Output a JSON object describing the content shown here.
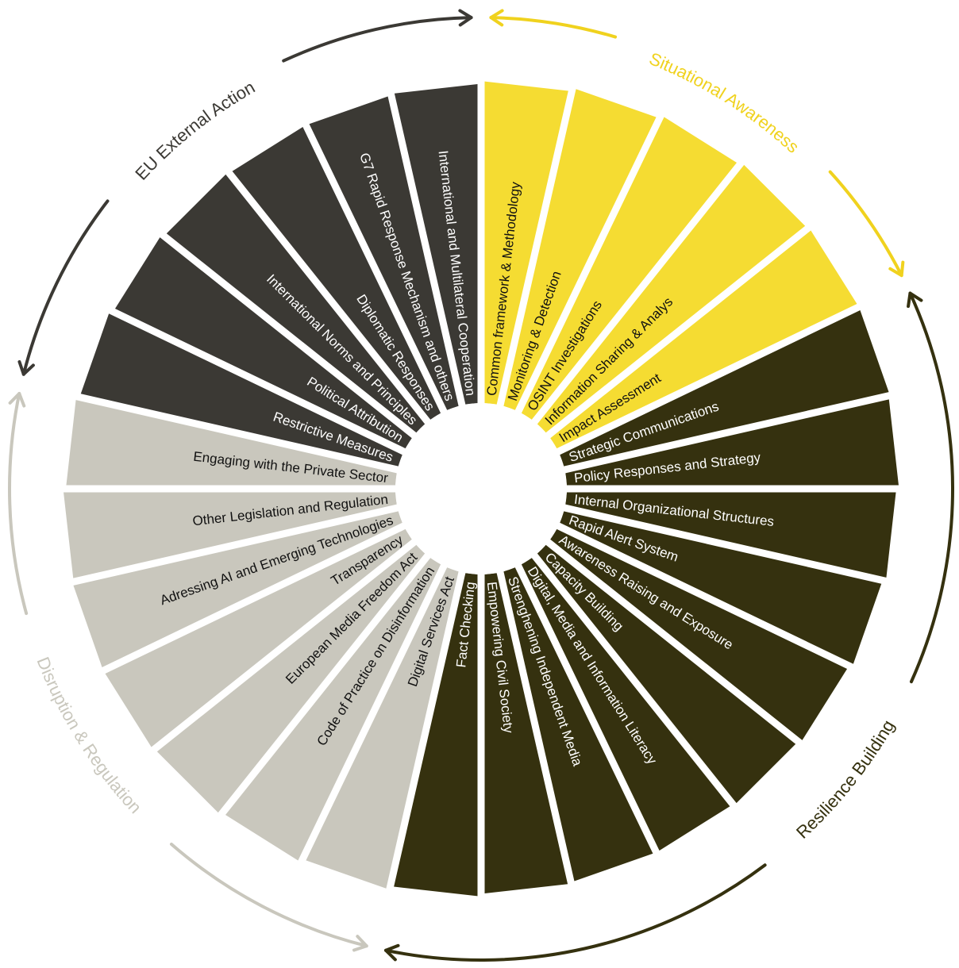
{
  "groups": [
    {
      "id": "situational-awareness",
      "label": "Situational Awareness",
      "color": "#f5dc32",
      "text_color": "#111111",
      "arc_color": "#f0d21e",
      "label_color": "#f0d21e",
      "segments": [
        "Common framework & Methodology",
        "Monitoring & Detection",
        "OSINT Investigations",
        "Information Sharing & Analys",
        "Impact Assessment"
      ]
    },
    {
      "id": "resilience-building",
      "label": "Resilience Building",
      "color": "#35310f",
      "text_color": "#ffffff",
      "arc_color": "#35310f",
      "label_color": "#35310f",
      "segments": [
        "Strategic Communications",
        "Policy Responses and Strategy",
        "Internal Organizational Structures",
        "Rapid Alert System",
        "Awareness Raising and Exposure",
        "Capacity Building",
        "Digital, Media and Information Literacy",
        "Strenghening Independent Media",
        "Empowering Civil Society",
        "Fact Checking"
      ]
    },
    {
      "id": "disruption-regulation",
      "label": "Disruption & Regulation",
      "color": "#c9c7bd",
      "text_color": "#111111",
      "arc_color": "#c9c7bd",
      "label_color": "#c9c7bd",
      "segments": [
        "Digital Services Act",
        "Code of Practice on Disinformation",
        "European Media Freedom Act",
        "Transparency",
        "Adressing AI and Emerging Technologies",
        "Other Legislation and Regulation",
        "Engaging with the Private Sector"
      ]
    },
    {
      "id": "eu-external-action",
      "label": "EU External Action",
      "color": "#3b3934",
      "text_color": "#ffffff",
      "arc_color": "#3b3934",
      "label_color": "#3b3934",
      "segments": [
        "Restrictive Measures",
        "Political Attribution",
        "International Norms and Principles",
        "Diplomatic Responses",
        "G7 Rapid Response Mechanism and others",
        "International and Multilateral Cooperation"
      ]
    }
  ]
}
